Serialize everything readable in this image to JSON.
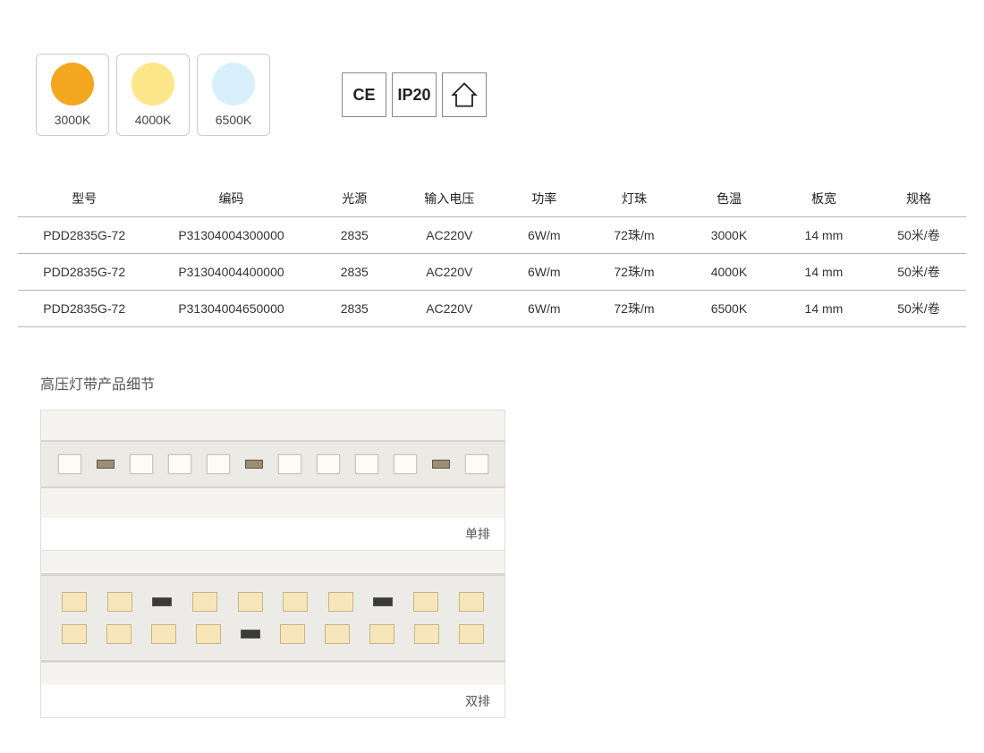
{
  "color_temps": [
    {
      "label": "3000K",
      "color": "#f2a71e"
    },
    {
      "label": "4000K",
      "color": "#fde58a"
    },
    {
      "label": "6500K",
      "color": "#d8f0fb"
    }
  ],
  "cert": {
    "ce": "CE",
    "ip": "IP20"
  },
  "table": {
    "headers": [
      "型号",
      "编码",
      "光源",
      "输入电压",
      "功率",
      "灯珠",
      "色温",
      "板宽",
      "规格"
    ],
    "col_widths": [
      "14%",
      "17%",
      "9%",
      "11%",
      "9%",
      "10%",
      "10%",
      "10%",
      "10%"
    ],
    "rows": [
      [
        "PDD2835G-72",
        "P31304004300000",
        "2835",
        "AC220V",
        "6W/m",
        "72珠/m",
        "3000K",
        "14 mm",
        "50米/卷"
      ],
      [
        "PDD2835G-72",
        "P31304004400000",
        "2835",
        "AC220V",
        "6W/m",
        "72珠/m",
        "4000K",
        "14 mm",
        "50米/卷"
      ],
      [
        "PDD2835G-72",
        "P31304004650000",
        "2835",
        "AC220V",
        "6W/m",
        "72珠/m",
        "6500K",
        "14 mm",
        "50米/卷"
      ]
    ]
  },
  "detail": {
    "title": "高压灯带产品细节",
    "row1_label": "单排",
    "row2_label": "双排"
  },
  "style": {
    "border_color": "#b5b5b5",
    "text_color": "#333333",
    "bg": "#ffffff"
  }
}
